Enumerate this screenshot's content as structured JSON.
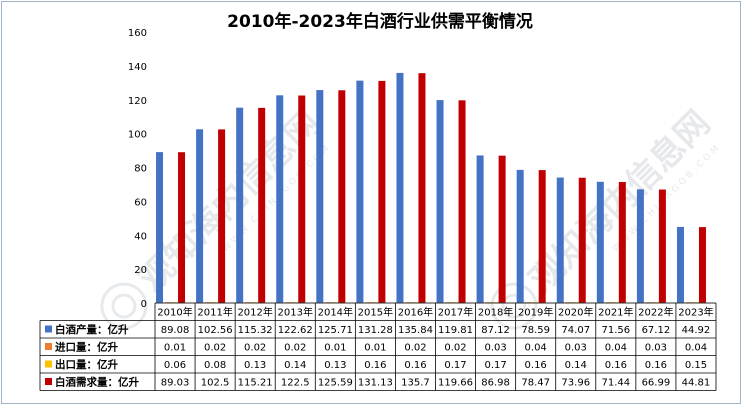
{
  "chart_data": {
    "type": "bar",
    "title": "2010年-2023年白酒行业供需平衡情况",
    "categories": [
      "2010年",
      "2011年",
      "2012年",
      "2013年",
      "2014年",
      "2015年",
      "2016年",
      "2017年",
      "2018年",
      "2019年",
      "2020年",
      "2021年",
      "2022年",
      "2023年"
    ],
    "ylim": [
      0,
      160
    ],
    "yticks": [
      "0",
      "20",
      "40",
      "60",
      "80",
      "100",
      "120",
      "140",
      "160"
    ],
    "grid": false,
    "legend_placement": "data-table",
    "series": [
      {
        "name": "白酒产量：亿升",
        "color": "#4472c4",
        "values": [
          89.08,
          102.56,
          115.32,
          122.62,
          125.71,
          131.28,
          135.84,
          119.81,
          87.12,
          78.59,
          74.07,
          71.56,
          67.12,
          44.92
        ],
        "labels": [
          "89.08",
          "102.56",
          "115.32",
          "122.62",
          "125.71",
          "131.28",
          "135.84",
          "119.81",
          "87.12",
          "78.59",
          "74.07",
          "71.56",
          "67.12",
          "44.92"
        ]
      },
      {
        "name": "进口量：亿升",
        "color": "#ed7d31",
        "values": [
          0.01,
          0.02,
          0.02,
          0.02,
          0.01,
          0.01,
          0.02,
          0.02,
          0.03,
          0.04,
          0.03,
          0.04,
          0.03,
          0.04
        ],
        "labels": [
          "0.01",
          "0.02",
          "0.02",
          "0.02",
          "0.01",
          "0.01",
          "0.02",
          "0.02",
          "0.03",
          "0.04",
          "0.03",
          "0.04",
          "0.03",
          "0.04"
        ]
      },
      {
        "name": "出口量：亿升",
        "color": "#ffc000",
        "values": [
          0.06,
          0.08,
          0.13,
          0.14,
          0.13,
          0.16,
          0.16,
          0.17,
          0.17,
          0.16,
          0.14,
          0.16,
          0.16,
          0.15
        ],
        "labels": [
          "0.06",
          "0.08",
          "0.13",
          "0.14",
          "0.13",
          "0.16",
          "0.16",
          "0.17",
          "0.17",
          "0.16",
          "0.14",
          "0.16",
          "0.16",
          "0.15"
        ]
      },
      {
        "name": "白酒需求量：亿升",
        "color": "#c00000",
        "values": [
          89.03,
          102.5,
          115.21,
          122.5,
          125.59,
          131.13,
          135.7,
          119.66,
          86.98,
          78.47,
          73.96,
          71.44,
          66.99,
          44.81
        ],
        "labels": [
          "89.03",
          "102.5",
          "115.21",
          "122.5",
          "125.59",
          "131.13",
          "135.7",
          "119.66",
          "86.98",
          "78.47",
          "73.96",
          "71.44",
          "66.99",
          "44.81"
        ]
      }
    ]
  },
  "watermark": {
    "text": "观知海内信息网",
    "url": "WWW.CHINAGOB.COM"
  }
}
